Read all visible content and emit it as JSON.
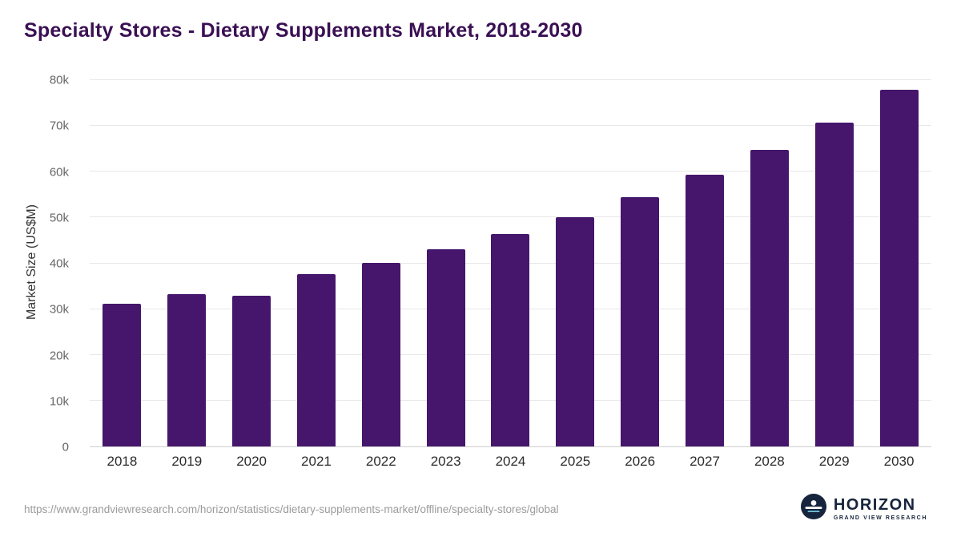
{
  "title": "Specialty Stores - Dietary Supplements Market, 2018-2030",
  "colors": {
    "bar": "#45166b",
    "title_text": "#3a1053",
    "axis_text": "#666666",
    "gridline": "#e8e8e8"
  },
  "chart_data": {
    "type": "bar",
    "title": "Specialty Stores - Dietary Supplements Market, 2018-2030",
    "xlabel": "",
    "ylabel": "Market Size (US$M)",
    "categories": [
      "2018",
      "2019",
      "2020",
      "2021",
      "2022",
      "2023",
      "2024",
      "2025",
      "2026",
      "2027",
      "2028",
      "2029",
      "2030"
    ],
    "values": [
      31100,
      33200,
      32900,
      37700,
      40100,
      43000,
      46400,
      50100,
      54500,
      59300,
      64800,
      70800,
      77900
    ],
    "ylim": [
      0,
      80000
    ],
    "ytick_step": 10000,
    "ytick_labels": [
      "0",
      "10k",
      "20k",
      "30k",
      "40k",
      "50k",
      "60k",
      "70k",
      "80k"
    ],
    "grid": true,
    "legend": false
  },
  "footer": {
    "source_url": "https://www.grandviewresearch.com/horizon/statistics/dietary-supplements-market/offline/specialty-stores/global",
    "logo_name": "HORIZON",
    "logo_subtext": "GRAND VIEW RESEARCH"
  }
}
